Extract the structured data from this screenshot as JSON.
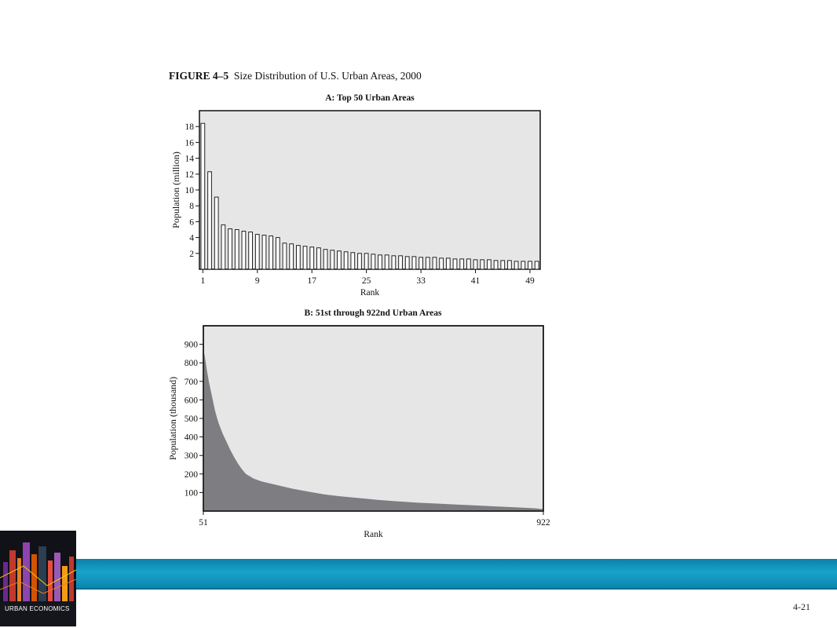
{
  "figure": {
    "number": "FIGURE 4–5",
    "caption": "Size Distribution of U.S. Urban Areas, 2000"
  },
  "chart_data": [
    {
      "type": "bar",
      "title": "A: Top 50 Urban Areas",
      "xlabel": "Rank",
      "ylabel": "Population (million)",
      "x_tick_labels": [
        "1",
        "9",
        "17",
        "25",
        "33",
        "41",
        "49"
      ],
      "y_tick_labels": [
        "2",
        "4",
        "6",
        "8",
        "10",
        "12",
        "14",
        "16",
        "18"
      ],
      "ylim": [
        0,
        20
      ],
      "categories": [
        1,
        2,
        3,
        4,
        5,
        6,
        7,
        8,
        9,
        10,
        11,
        12,
        13,
        14,
        15,
        16,
        17,
        18,
        19,
        20,
        21,
        22,
        23,
        24,
        25,
        26,
        27,
        28,
        29,
        30,
        31,
        32,
        33,
        34,
        35,
        36,
        37,
        38,
        39,
        40,
        41,
        42,
        43,
        44,
        45,
        46,
        47,
        48,
        49,
        50
      ],
      "values": [
        18.4,
        12.3,
        9.1,
        5.6,
        5.1,
        5.0,
        4.8,
        4.7,
        4.4,
        4.3,
        4.2,
        4.0,
        3.3,
        3.2,
        3.0,
        2.9,
        2.8,
        2.7,
        2.5,
        2.4,
        2.3,
        2.2,
        2.1,
        2.0,
        2.0,
        1.9,
        1.8,
        1.8,
        1.7,
        1.7,
        1.6,
        1.6,
        1.5,
        1.5,
        1.5,
        1.4,
        1.4,
        1.3,
        1.3,
        1.3,
        1.2,
        1.2,
        1.2,
        1.1,
        1.1,
        1.1,
        1.0,
        1.0,
        1.0,
        1.0
      ],
      "grid": false,
      "colors": {
        "plot_bg": "#e6e6e6",
        "bar_fill": "#ffffff",
        "bar_stroke": "#222222"
      }
    },
    {
      "type": "area",
      "title": "B: 51st through 922nd Urban Areas",
      "xlabel": "Rank",
      "ylabel": "Population (thousand)",
      "x_tick_labels": [
        "51",
        "922"
      ],
      "y_tick_labels": [
        "100",
        "200",
        "300",
        "400",
        "500",
        "600",
        "700",
        "800",
        "900"
      ],
      "xlim": [
        51,
        922
      ],
      "ylim": [
        0,
        1000
      ],
      "x": [
        51,
        55,
        60,
        65,
        70,
        75,
        80,
        85,
        90,
        100,
        110,
        120,
        130,
        140,
        150,
        160,
        180,
        200,
        220,
        250,
        280,
        320,
        360,
        400,
        450,
        500,
        550,
        600,
        650,
        700,
        750,
        800,
        850,
        900,
        922
      ],
      "y": [
        880,
        830,
        760,
        700,
        650,
        600,
        550,
        510,
        475,
        420,
        375,
        330,
        290,
        255,
        225,
        200,
        175,
        160,
        150,
        135,
        120,
        105,
        90,
        80,
        70,
        60,
        52,
        45,
        40,
        35,
        30,
        25,
        20,
        15,
        10
      ],
      "grid": false,
      "colors": {
        "plot_bg": "#e6e6e6",
        "area_fill": "#7e7e82"
      }
    }
  ],
  "footer": {
    "book_title": "URBAN ECONOMICS",
    "page_number": "4-21",
    "colors": {
      "band": "#1a9cc8"
    }
  }
}
